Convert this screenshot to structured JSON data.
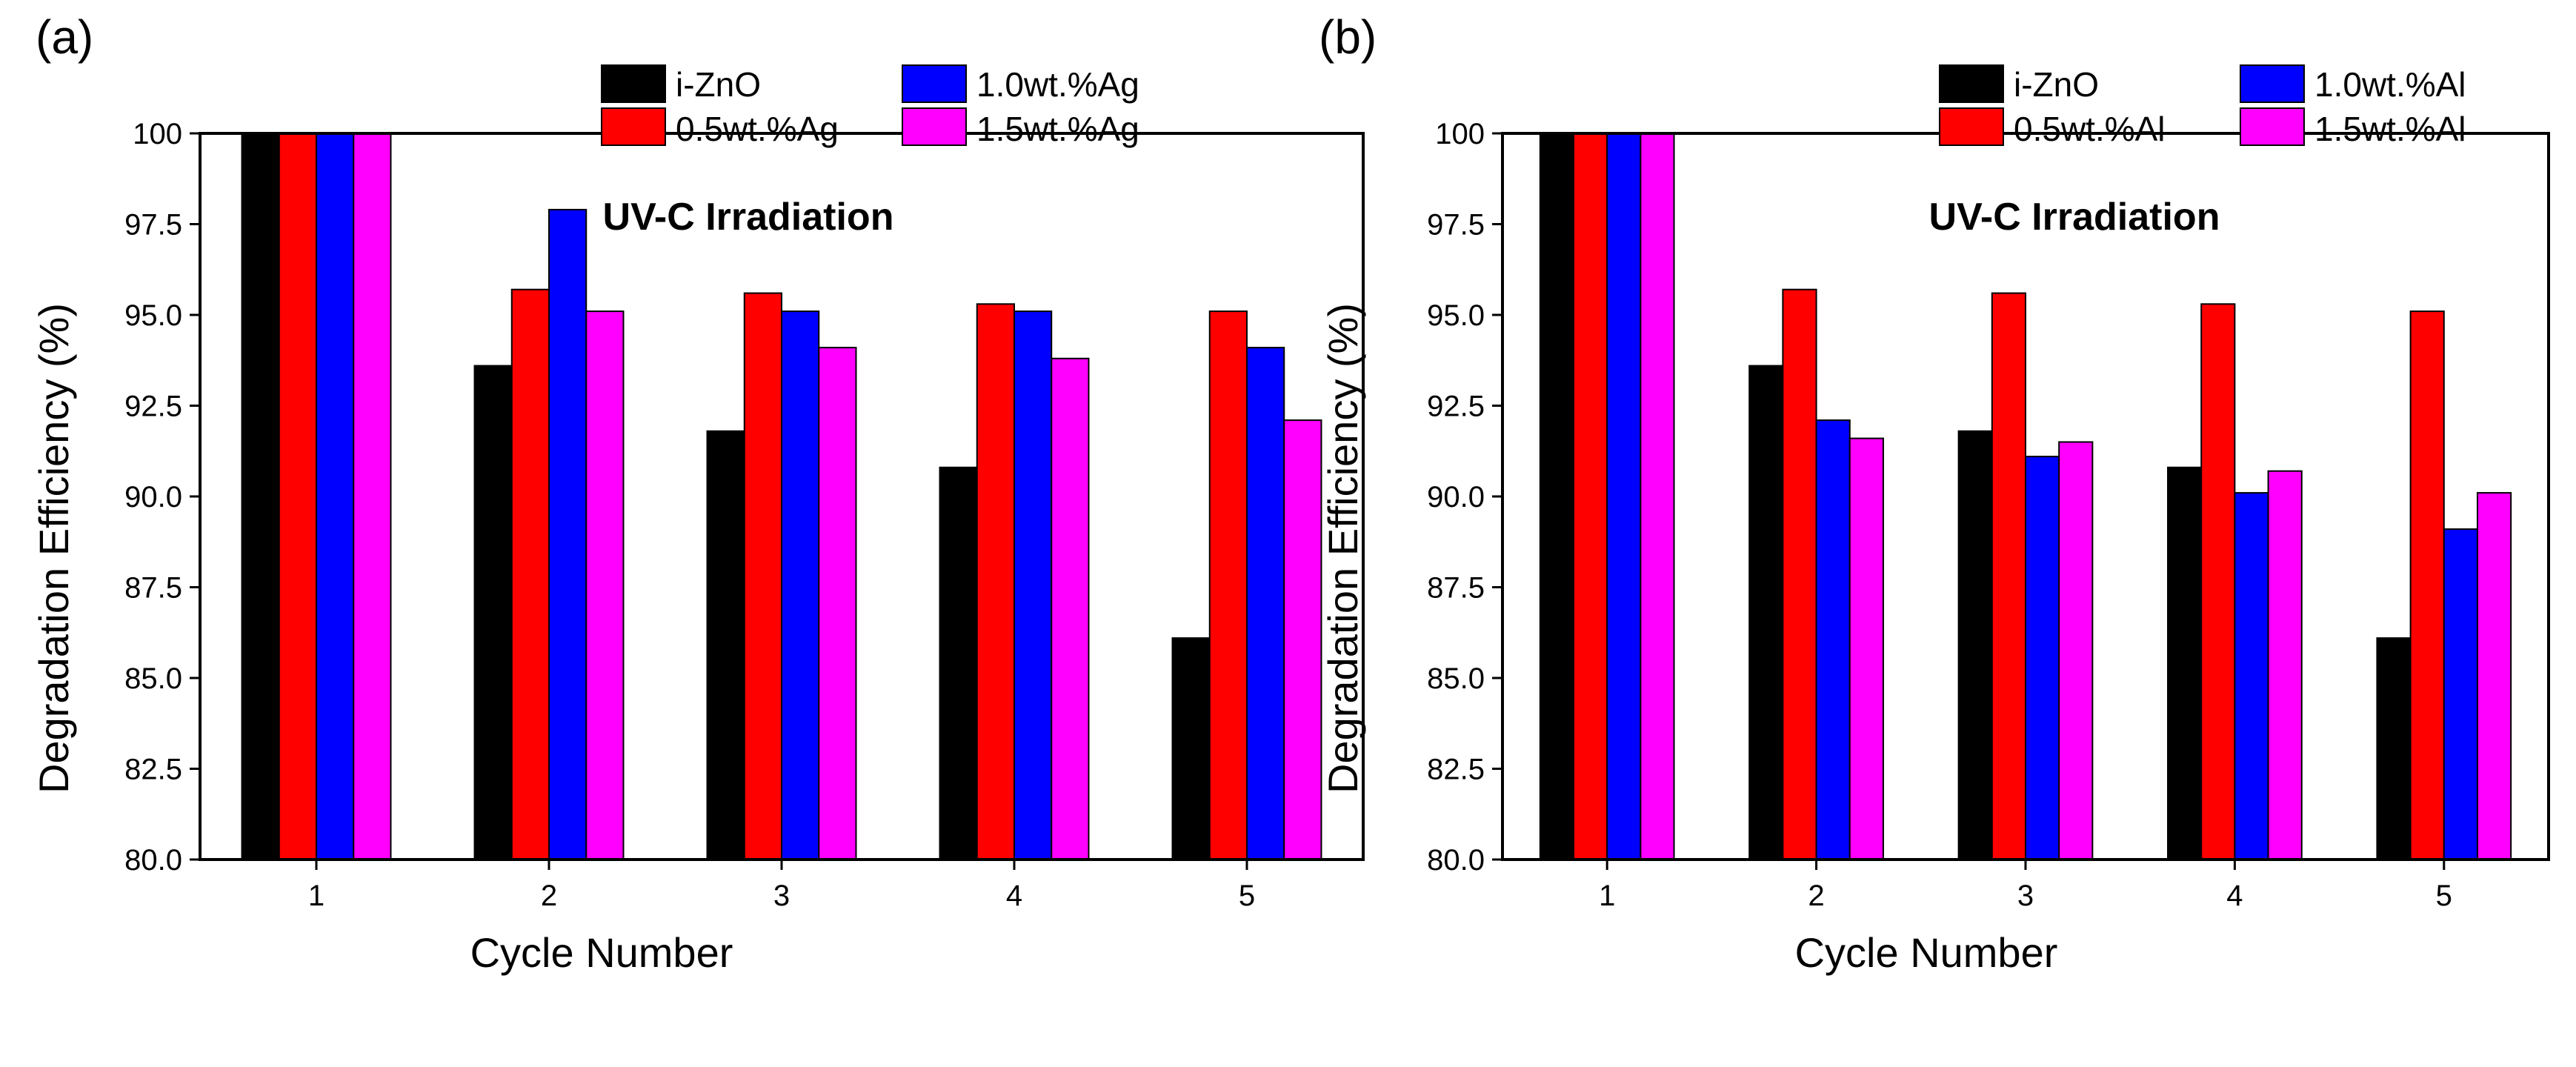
{
  "colors": {
    "i-ZnO": "#000000",
    "low": "#ff0000",
    "mid": "#0000ff",
    "high": "#ff00ff"
  },
  "chart_data": [
    {
      "type": "bar",
      "panel_label": "(a)",
      "title": "",
      "annotation": "UV-C Irradiation",
      "xlabel": "Cycle Number",
      "ylabel": "Degradation Efficiency (%)",
      "ylim": [
        80.0,
        100
      ],
      "yticks": [
        "80.0",
        "82.5",
        "85.0",
        "87.5",
        "90.0",
        "92.5",
        "95.0",
        "97.5",
        "100"
      ],
      "categories": [
        "1",
        "2",
        "3",
        "4",
        "5"
      ],
      "legend_position": "top-right",
      "series": [
        {
          "name": "i-ZnO",
          "color": "#000000",
          "values": [
            100,
            93.6,
            91.8,
            90.8,
            86.1
          ]
        },
        {
          "name": "0.5wt.%Ag",
          "color": "#ff0000",
          "values": [
            100,
            95.7,
            95.6,
            95.3,
            95.1
          ]
        },
        {
          "name": "1.0wt.%Ag",
          "color": "#0000ff",
          "values": [
            100,
            97.9,
            95.1,
            95.1,
            94.1
          ]
        },
        {
          "name": "1.5wt.%Ag",
          "color": "#ff00ff",
          "values": [
            100,
            95.1,
            94.1,
            93.8,
            92.1
          ]
        }
      ]
    },
    {
      "type": "bar",
      "panel_label": "(b)",
      "title": "",
      "annotation": "UV-C Irradiation",
      "xlabel": "Cycle Number",
      "ylabel": "Degradation Efficiency (%)",
      "ylim": [
        80.0,
        100
      ],
      "yticks": [
        "80.0",
        "82.5",
        "85.0",
        "87.5",
        "90.0",
        "92.5",
        "95.0",
        "97.5",
        "100"
      ],
      "categories": [
        "1",
        "2",
        "3",
        "4",
        "5"
      ],
      "legend_position": "top-right",
      "series": [
        {
          "name": "i-ZnO",
          "color": "#000000",
          "values": [
            100,
            93.6,
            91.8,
            90.8,
            86.1
          ]
        },
        {
          "name": "0.5wt.%Al",
          "color": "#ff0000",
          "values": [
            100,
            95.7,
            95.6,
            95.3,
            95.1
          ]
        },
        {
          "name": "1.0wt.%Al",
          "color": "#0000ff",
          "values": [
            100,
            92.1,
            91.1,
            90.1,
            89.1
          ]
        },
        {
          "name": "1.5wt.%Al",
          "color": "#ff00ff",
          "values": [
            100,
            91.6,
            91.5,
            90.7,
            90.1
          ]
        }
      ]
    }
  ]
}
